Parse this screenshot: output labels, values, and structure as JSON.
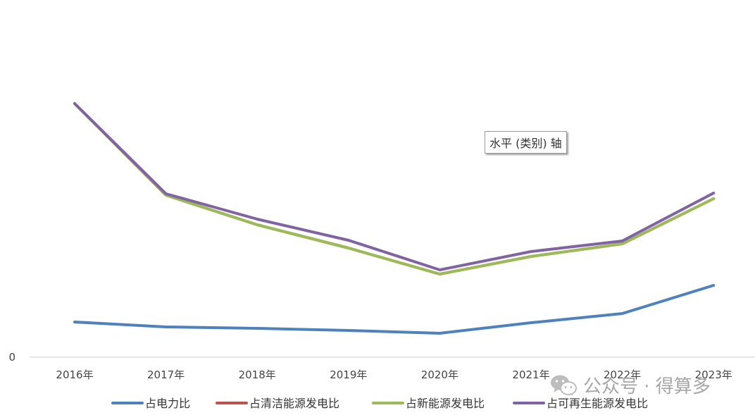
{
  "chart_data": {
    "type": "line",
    "categories": [
      "2016年",
      "2017年",
      "2018年",
      "2019年",
      "2020年",
      "2021年",
      "2022年",
      "2023年"
    ],
    "series": [
      {
        "name": "占电力比",
        "color": "#4f81bd",
        "values": [
          5.0,
          4.3,
          4.1,
          3.8,
          3.4,
          4.9,
          6.2,
          10.2
        ]
      },
      {
        "name": "占清洁能源发电比",
        "color": "#c0504d",
        "values": [
          36.0,
          23.0,
          18.8,
          15.5,
          11.8,
          14.3,
          16.1,
          22.5
        ]
      },
      {
        "name": "占新能源发电比",
        "color": "#9bbb59",
        "values": [
          36.0,
          23.0,
          18.8,
          15.5,
          11.8,
          14.3,
          16.1,
          22.5
        ]
      },
      {
        "name": "占可再生能源发电比",
        "color": "#8064a2",
        "values": [
          36.0,
          23.2,
          19.6,
          16.6,
          12.4,
          15.0,
          16.5,
          23.3
        ]
      }
    ],
    "yaxis": {
      "min": 0,
      "max": 50,
      "tick_labels": [
        "0"
      ]
    },
    "grid": false,
    "legend_position": "bottom"
  },
  "tooltip": {
    "text": "水平 (类别) 轴"
  },
  "watermark": {
    "text": "公众号 · 得算多",
    "icon": "wechat-icon"
  }
}
